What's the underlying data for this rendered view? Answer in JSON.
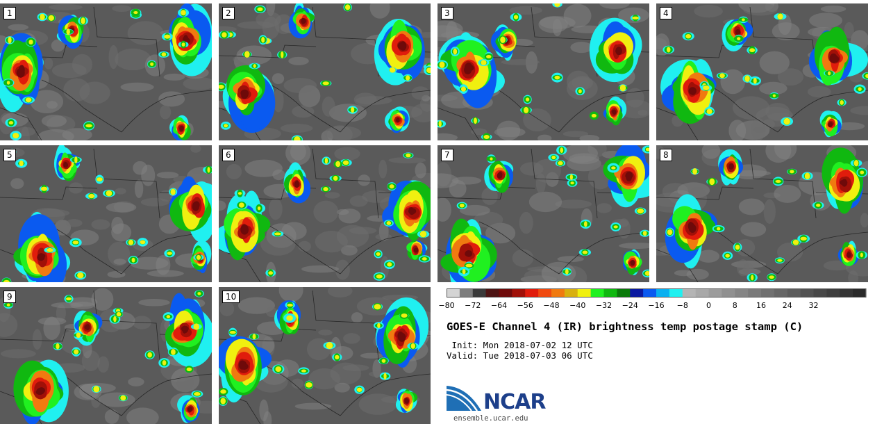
{
  "panels": [
    {
      "label": "1"
    },
    {
      "label": "2"
    },
    {
      "label": "3"
    },
    {
      "label": "4"
    },
    {
      "label": "5"
    },
    {
      "label": "6"
    },
    {
      "label": "7"
    },
    {
      "label": "8"
    },
    {
      "label": "9"
    },
    {
      "label": "10"
    }
  ],
  "colorbar": {
    "tick_labels": [
      "−80",
      "−72",
      "−64",
      "−56",
      "−48",
      "−40",
      "−32",
      "−24",
      "−16",
      "−8",
      "0",
      "8",
      "16",
      "24",
      "32"
    ],
    "colors": [
      "#d4d4d4",
      "#7d7d7d",
      "#3a3a3a",
      "#4d1414",
      "#6e0a0a",
      "#a01008",
      "#e01c0c",
      "#f04a10",
      "#f07a10",
      "#d8b010",
      "#f0f010",
      "#20f020",
      "#10b810",
      "#0a7a0a",
      "#0a1aa0",
      "#0a5af0",
      "#0ab0f0",
      "#20f0f0",
      "#b4b4b4",
      "#a8a8a8",
      "#9c9c9c",
      "#909090",
      "#858585",
      "#7a7a7a",
      "#707070",
      "#666666",
      "#5c5c5c",
      "#525252",
      "#484848",
      "#3e3e3e",
      "#343434",
      "#2a2a2a"
    ]
  },
  "title": "GOES-E Channel 4 (IR) brightness temp postage stamp (C)",
  "init": " Init: Mon 2018-07-02 12 UTC",
  "valid": "Valid: Tue 2018-07-03 06 UTC",
  "logo": {
    "text": "NCAR",
    "site": "ensemble.ucar.edu",
    "color": "#1d3f8a"
  }
}
